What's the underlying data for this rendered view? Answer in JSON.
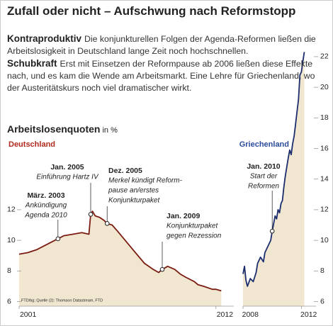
{
  "title": "Zufall oder nicht – Aufschwung nach Reformstopp",
  "paragraphs": [
    {
      "lead": "Kontraproduktiv",
      "text": "Die konjunkturellen Folgen der Agenda-Reformen ließen die Arbeitslosigkeit in Deutschland lange Zeit noch hochschnellen."
    },
    {
      "lead": "Schubkraft",
      "text": "Erst mit Einsetzen der Reformpause ab 2006 ließen diese Effekte nach, und es kam die Wende am Arbeitsmarkt. Eine Lehre für Griechenland, wo der Austeritätskurs noch viel dramatischer wirkt."
    }
  ],
  "section_title": "Arbeitslosenquoten",
  "section_unit": "in %",
  "chart_data": [
    {
      "type": "line",
      "title": "Deutschland",
      "color": "#7a1c12",
      "title_color": "#b22a1e",
      "fill": "#f1e7d1",
      "x": [
        2001.0,
        2001.5,
        2002.0,
        2002.5,
        2003.0,
        2003.17,
        2003.5,
        2004.0,
        2004.5,
        2004.9,
        2005.0,
        2005.1,
        2005.25,
        2005.5,
        2005.75,
        2005.92,
        2006.2,
        2006.5,
        2007.0,
        2007.5,
        2008.0,
        2008.5,
        2008.8,
        2009.0,
        2009.3,
        2009.7,
        2010.0,
        2010.3,
        2010.8,
        2011.0,
        2011.3,
        2011.8,
        2012.0,
        2012.3
      ],
      "values": [
        9.1,
        9.2,
        9.4,
        9.7,
        10.0,
        10.1,
        10.3,
        10.4,
        10.5,
        10.4,
        11.7,
        11.9,
        11.6,
        11.5,
        11.3,
        11.1,
        11.0,
        10.6,
        9.9,
        9.2,
        8.5,
        8.1,
        7.9,
        8.1,
        8.3,
        8.1,
        7.8,
        7.6,
        7.3,
        7.1,
        7.0,
        6.8,
        6.8,
        6.7
      ],
      "xlim": [
        2001,
        2013
      ],
      "xticks": [
        2001,
        2012
      ],
      "ylim": [
        5.7,
        15.8
      ],
      "yticks": [
        6,
        8,
        10,
        12
      ],
      "yaxis": "left",
      "annotations": [
        {
          "x": 2003.17,
          "y": 10.1,
          "label": [
            "März. 2003",
            "Ankündigung",
            "Agenda 2010"
          ]
        },
        {
          "x": 2005.0,
          "y": 11.7,
          "label": [
            "Jan. 2005",
            "Einführung Hartz IV"
          ]
        },
        {
          "x": 2005.92,
          "y": 11.1,
          "label": [
            "Dez. 2005",
            "Merkel kündigt Reform-",
            "pause an/erstes",
            "Konjunkturpaket"
          ]
        },
        {
          "x": 2009.0,
          "y": 8.1,
          "label": [
            "Jan. 2009",
            "Konjunkturpaket",
            "gegen Rezession"
          ]
        }
      ],
      "source": "FTD/bg; Quelle (2): Thomson Datastream, FTD"
    },
    {
      "type": "line",
      "title": "Griechenland",
      "color": "#1b2d6e",
      "title_color": "#2c4c9c",
      "fill": "#f1e7d1",
      "x": [
        2008.0,
        2008.1,
        2008.2,
        2008.3,
        2008.5,
        2008.7,
        2008.9,
        2009.0,
        2009.2,
        2009.4,
        2009.5,
        2009.7,
        2009.9,
        2010.0,
        2010.2,
        2010.3,
        2010.4,
        2010.5,
        2010.6,
        2010.7,
        2010.8,
        2010.9,
        2011.0,
        2011.1,
        2011.2,
        2011.3,
        2011.4,
        2011.5,
        2011.6,
        2011.7,
        2011.8,
        2011.9,
        2012.0,
        2012.1,
        2012.2
      ],
      "values": [
        7.8,
        8.3,
        7.4,
        7.0,
        7.5,
        7.3,
        7.9,
        8.5,
        8.9,
        8.6,
        9.2,
        9.6,
        10.0,
        10.6,
        11.6,
        11.4,
        12.0,
        11.8,
        12.4,
        12.6,
        13.5,
        14.2,
        14.8,
        15.4,
        15.9,
        15.6,
        16.3,
        16.8,
        17.6,
        18.4,
        19.2,
        20.8,
        21.0,
        21.7,
        22.3
      ],
      "xlim": [
        2008,
        2013
      ],
      "xticks": [
        2008,
        2012
      ],
      "ylim": [
        5.7,
        22.6
      ],
      "yticks": [
        6,
        8,
        10,
        12,
        14,
        16,
        18,
        20,
        22
      ],
      "yaxis": "right",
      "annotations": [
        {
          "x": 2010.0,
          "y": 10.6,
          "label": [
            "Jan. 2010",
            "Start der",
            "Reformen"
          ]
        }
      ]
    }
  ]
}
